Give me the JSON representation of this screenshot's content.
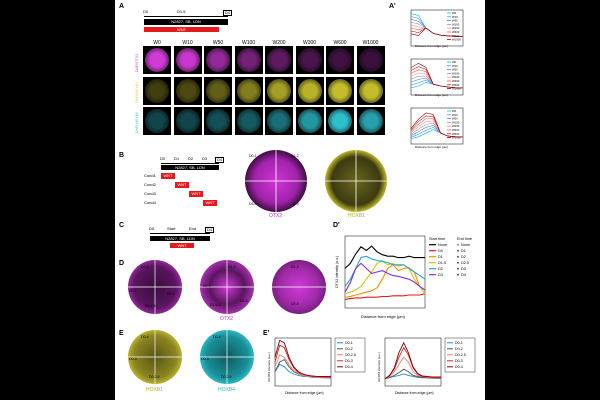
{
  "panels": {
    "A": {
      "label": "A",
      "timeline": {
        "d0": "D0",
        "d15": "D1.5",
        "d4": "D4",
        "bar": "N2827, SB, LDN",
        "wnt": "WNT"
      },
      "columns": [
        "W0",
        "W10",
        "W50",
        "W100",
        "W200",
        "W300",
        "W600",
        "W1000"
      ],
      "rows": [
        {
          "label": "DAPI/OTX2",
          "color": "#d23ad8"
        },
        {
          "label": "DAPI/HOXB1",
          "color": "#d9d232"
        },
        {
          "label": "DAPI/HOXB4",
          "color": "#2fc9d6"
        }
      ],
      "row_intensity": [
        [
          1.0,
          0.95,
          0.7,
          0.55,
          0.45,
          0.35,
          0.3,
          0.28
        ],
        [
          0.3,
          0.35,
          0.45,
          0.6,
          0.75,
          0.85,
          0.9,
          0.9
        ],
        [
          0.35,
          0.35,
          0.4,
          0.45,
          0.55,
          0.75,
          0.95,
          0.8
        ]
      ]
    },
    "A_prime": {
      "label": "A'",
      "legend": [
        "W0",
        "W10",
        "W50",
        "W100",
        "W200",
        "W300",
        "W600",
        "W1000"
      ],
      "xlabel": "Distance from edge (μm)"
    },
    "B": {
      "label": "B",
      "timeline": {
        "d0": "D0",
        "d1": "D1",
        "d2": "D2",
        "d3": "D3",
        "d4": "D4",
        "bar": "N2827, SB, LDN"
      },
      "conds": [
        {
          "label": "Cond1",
          "wnt": "WNT"
        },
        {
          "label": "Cond2",
          "wnt": "WNT"
        },
        {
          "label": "Cond3",
          "wnt": "WNT"
        },
        {
          "label": "Cond4",
          "wnt": "WNT"
        }
      ],
      "disc1_label": "OTX2",
      "disc2_label": "HOXB1",
      "sector_labels": [
        "D0-1",
        "D1-2",
        "D2-3",
        "D3-4"
      ]
    },
    "C": {
      "label": "C",
      "timeline": {
        "d0": "D0",
        "start": "Start",
        "end": "End",
        "d4": "D4",
        "bar": "N2827, SB, LDN",
        "wnt": "WNT"
      }
    },
    "D": {
      "label": "D",
      "discs": [
        {
          "sectors": [
            "D0-1",
            "D0-2",
            "D0-2.5",
            "D0-3"
          ]
        },
        {
          "sectors": [
            "D1-2",
            "D1-3",
            "D1-4",
            "D1.5-3"
          ],
          "label": "OTX2"
        },
        {
          "sectors": [
            "D2-3",
            "D2-4"
          ]
        }
      ]
    },
    "D_prime": {
      "label": "D'",
      "xlabel": "Distance from edge (μm)",
      "ylabel": "OTX2 intensity (a.u.)",
      "legend_start_title": "Start time",
      "legend_end_title": "End time",
      "start_items": [
        "None",
        "D0",
        "D1",
        "D1.5",
        "D2",
        "D3"
      ],
      "end_items": [
        "None",
        "D1",
        "D2",
        "D2.5",
        "D3",
        "D4"
      ],
      "start_colors": [
        "#000000",
        "#e41a1c",
        "#ff8c00",
        "#d4c400",
        "#1ea7e0",
        "#8a2be2"
      ]
    },
    "E": {
      "label": "E",
      "disc1": {
        "label": "HOXB1",
        "sectors": [
          "D0-4",
          "D0-3",
          "D0-2.5"
        ]
      },
      "disc2": {
        "label": "HOXB4",
        "sectors": [
          "D0-4",
          "D0-3",
          "D0-2.5"
        ]
      }
    },
    "E_prime": {
      "label": "E'",
      "xlabel": "Distance from edge (μm)",
      "ylabel1": "HOXB1 intensity (a.u.)",
      "ylabel2": "HOXB4 intensity (a.u.)",
      "legend": [
        "D0-1",
        "D0-2",
        "D0-2.5",
        "D0-3",
        "D0-4"
      ]
    }
  },
  "chart_data": [
    {
      "type": "line",
      "title": "",
      "xlabel": "Distance from edge (μm)",
      "ylabel": "OTX2 intensity (a.u.)",
      "xlim": [
        0,
        320
      ],
      "ylim": [
        0,
        1
      ],
      "x": [
        0,
        20,
        40,
        60,
        80,
        100,
        120,
        140,
        160,
        180,
        200,
        220,
        240,
        260,
        280,
        300
      ],
      "series": [
        {
          "name": "None",
          "color": "#000000",
          "values": [
            0.55,
            0.62,
            0.75,
            0.85,
            0.8,
            0.86,
            0.78,
            0.74,
            0.72,
            0.72,
            0.7,
            0.7,
            0.72,
            0.7,
            0.7,
            0.7
          ]
        },
        {
          "name": "D0",
          "color": "#e41a1c",
          "values": [
            0.12,
            0.13,
            0.14,
            0.14,
            0.15,
            0.15,
            0.15,
            0.16,
            0.16,
            0.17,
            0.17,
            0.17,
            0.18,
            0.18,
            0.18,
            0.2
          ]
        },
        {
          "name": "D1",
          "color": "#ff8c00",
          "values": [
            0.15,
            0.16,
            0.18,
            0.2,
            0.22,
            0.24,
            0.28,
            0.4,
            0.55,
            0.6,
            0.52,
            0.55,
            0.56,
            0.5,
            0.3,
            0.2
          ]
        },
        {
          "name": "D1.5",
          "color": "#d4c400",
          "values": [
            0.2,
            0.22,
            0.25,
            0.3,
            0.4,
            0.5,
            0.62,
            0.65,
            0.6,
            0.62,
            0.58,
            0.6,
            0.55,
            0.4,
            0.3,
            0.2
          ]
        },
        {
          "name": "D2",
          "color": "#1ea7e0",
          "values": [
            0.3,
            0.4,
            0.55,
            0.7,
            0.72,
            0.68,
            0.66,
            0.65,
            0.63,
            0.6,
            0.6,
            0.6,
            0.55,
            0.5,
            0.45,
            0.4
          ]
        },
        {
          "name": "D3",
          "color": "#8a2be2",
          "values": [
            0.22,
            0.35,
            0.55,
            0.62,
            0.55,
            0.48,
            0.5,
            0.52,
            0.48,
            0.45,
            0.44,
            0.42,
            0.4,
            0.36,
            0.3,
            0.25
          ]
        }
      ]
    },
    {
      "type": "line",
      "title": "",
      "xlabel": "Distance from edge (μm)",
      "ylabel": "HOXB1 intensity (a.u.)",
      "x": [
        0,
        25,
        50,
        75,
        100,
        125,
        150,
        175,
        200,
        225,
        250,
        275,
        300
      ],
      "series": [
        {
          "name": "D0-1",
          "color": "#1a8fd6",
          "values": [
            0.3,
            0.45,
            0.4,
            0.3,
            0.25,
            0.22,
            0.2,
            0.2,
            0.18,
            0.18,
            0.17,
            0.17,
            0.17
          ]
        },
        {
          "name": "D0-2",
          "color": "#555555",
          "values": [
            0.3,
            0.5,
            0.55,
            0.4,
            0.3,
            0.25,
            0.22,
            0.2,
            0.19,
            0.18,
            0.18,
            0.17,
            0.17
          ]
        },
        {
          "name": "D0-2.5",
          "color": "#f08080",
          "values": [
            0.4,
            0.65,
            0.6,
            0.45,
            0.32,
            0.26,
            0.22,
            0.2,
            0.19,
            0.18,
            0.18,
            0.18,
            0.18
          ]
        },
        {
          "name": "D0-3",
          "color": "#d62728",
          "values": [
            0.5,
            0.85,
            0.8,
            0.55,
            0.38,
            0.28,
            0.24,
            0.22,
            0.2,
            0.2,
            0.19,
            0.19,
            0.19
          ]
        },
        {
          "name": "D0-4",
          "color": "#8b0000",
          "values": [
            0.6,
            0.95,
            0.9,
            0.6,
            0.4,
            0.3,
            0.25,
            0.22,
            0.21,
            0.2,
            0.2,
            0.2,
            0.2
          ]
        }
      ]
    },
    {
      "type": "line",
      "title": "",
      "xlabel": "Distance from edge (μm)",
      "ylabel": "HOXB4 intensity (a.u.)",
      "x": [
        0,
        25,
        50,
        75,
        100,
        125,
        150,
        175,
        200,
        225,
        250,
        275,
        300
      ],
      "series": [
        {
          "name": "D0-1",
          "color": "#1a8fd6",
          "values": [
            0.15,
            0.18,
            0.2,
            0.22,
            0.25,
            0.22,
            0.2,
            0.18,
            0.17,
            0.17,
            0.16,
            0.16,
            0.16
          ]
        },
        {
          "name": "D0-2",
          "color": "#555555",
          "values": [
            0.15,
            0.18,
            0.22,
            0.28,
            0.35,
            0.3,
            0.22,
            0.2,
            0.18,
            0.17,
            0.17,
            0.16,
            0.16
          ]
        },
        {
          "name": "D0-2.5",
          "color": "#f08080",
          "values": [
            0.15,
            0.2,
            0.3,
            0.45,
            0.6,
            0.5,
            0.3,
            0.22,
            0.2,
            0.18,
            0.17,
            0.17,
            0.17
          ]
        },
        {
          "name": "D0-3",
          "color": "#d62728",
          "values": [
            0.15,
            0.22,
            0.35,
            0.6,
            0.8,
            0.65,
            0.38,
            0.25,
            0.2,
            0.19,
            0.18,
            0.18,
            0.18
          ]
        },
        {
          "name": "D0-4",
          "color": "#8b0000",
          "values": [
            0.15,
            0.22,
            0.38,
            0.7,
            0.9,
            0.7,
            0.4,
            0.26,
            0.21,
            0.2,
            0.19,
            0.19,
            0.19
          ]
        }
      ]
    }
  ]
}
